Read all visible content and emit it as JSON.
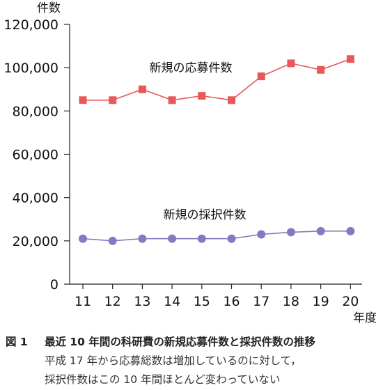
{
  "chart_data": {
    "type": "line",
    "ylabel": "件数",
    "xlabel": "年度",
    "ylim": [
      0,
      120000
    ],
    "yticks": [
      0,
      20000,
      40000,
      60000,
      80000,
      100000,
      120000
    ],
    "ytick_labels": [
      "0",
      "20,000",
      "40,000",
      "60,000",
      "80,000",
      "100,000",
      "120,000"
    ],
    "x": [
      "11",
      "12",
      "13",
      "14",
      "15",
      "16",
      "17",
      "18",
      "19",
      "20"
    ],
    "series": [
      {
        "name": "新規の応募件数",
        "marker": "square",
        "color": "#e8585a",
        "values": [
          85000,
          85000,
          90000,
          85000,
          87000,
          85000,
          96000,
          102000,
          99000,
          104000
        ]
      },
      {
        "name": "新規の採択件数",
        "marker": "circle",
        "color": "#8878c3",
        "values": [
          21000,
          20000,
          21000,
          21000,
          21000,
          21000,
          23000,
          24000,
          24500,
          24500
        ]
      }
    ],
    "grid": false,
    "legend": "inline labels"
  },
  "caption": {
    "figure_no": "図 1",
    "title": "最近 10 年間の科研費の新規応募件数と採択件数の推移",
    "line1": "平成 17 年から応募総数は増加しているのに対して，",
    "line2": "採択件数はこの 10 年間ほとんど変わっていない"
  }
}
